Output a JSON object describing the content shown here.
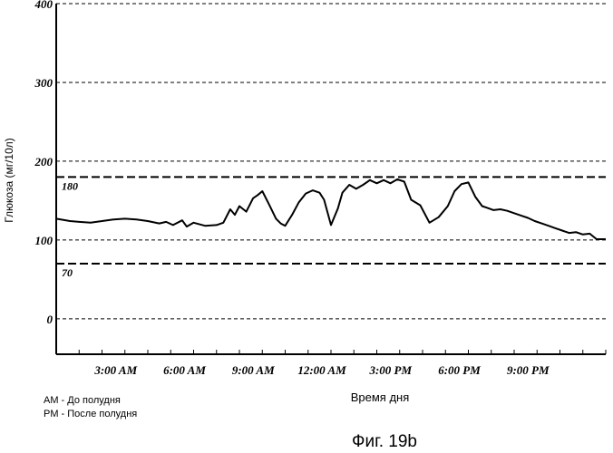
{
  "chart_data": {
    "type": "line",
    "title": "",
    "caption": "Фиг. 19b",
    "ylabel": "Глюкоза (мг/10л)",
    "xlabel": "Время дня",
    "ylim": [
      -45,
      400
    ],
    "y_ticks": [
      "400",
      "300",
      "200",
      "100",
      "0"
    ],
    "x_tick_labels": [
      "3:00 AM",
      "6:00 AM",
      "9:00 AM",
      "12:00 AM",
      "3:00 PM",
      "6:00 PM",
      "9:00 PM"
    ],
    "reference_lines": [
      {
        "label": "180",
        "value": 180
      },
      {
        "label": "70",
        "value": 70
      }
    ],
    "legend_notes": [
      "AM - До полудня",
      "PM - После полудня"
    ],
    "grid": "dashed horizontal at 0, 100, 200, 300, 400",
    "series": [
      {
        "x_hours": [
          0,
          0.6,
          1,
          1.5,
          2,
          2.5,
          3,
          3.5,
          4,
          4.5,
          4.8,
          5.1,
          5.5,
          5.7,
          6,
          6.5,
          7,
          7.3,
          7.6,
          7.8,
          8,
          8.3,
          8.6,
          8.8,
          9,
          9.3,
          9.6,
          9.8,
          10,
          10.3,
          10.6,
          10.9,
          11.2,
          11.5,
          11.7,
          12,
          12.3,
          12.5,
          12.8,
          13.1,
          13.4,
          13.7,
          14,
          14.3,
          14.6,
          14.9,
          15.2,
          15.5,
          15.9,
          16.3,
          16.7,
          17.1,
          17.4,
          17.7,
          18,
          18.3,
          18.6,
          18.8,
          19.1,
          19.4,
          19.7,
          20,
          20.3,
          20.6,
          20.9,
          21.2,
          21.5,
          21.8,
          22.1,
          22.4,
          22.7,
          23,
          23.3,
          23.6,
          24
        ],
        "values": [
          127,
          124,
          123,
          122,
          124,
          126,
          127,
          126,
          124,
          121,
          123,
          119,
          125,
          117,
          122,
          118,
          119,
          122,
          139,
          132,
          143,
          136,
          153,
          157,
          162,
          145,
          127,
          121,
          118,
          132,
          148,
          159,
          163,
          160,
          151,
          119,
          140,
          160,
          170,
          165,
          170,
          176,
          172,
          176,
          172,
          177,
          174,
          151,
          144,
          122,
          129,
          143,
          162,
          171,
          173,
          155,
          143,
          141,
          138,
          139,
          137,
          134,
          131,
          128,
          124,
          121,
          118,
          115,
          112,
          109,
          110,
          107,
          108,
          101,
          101
        ]
      }
    ]
  }
}
